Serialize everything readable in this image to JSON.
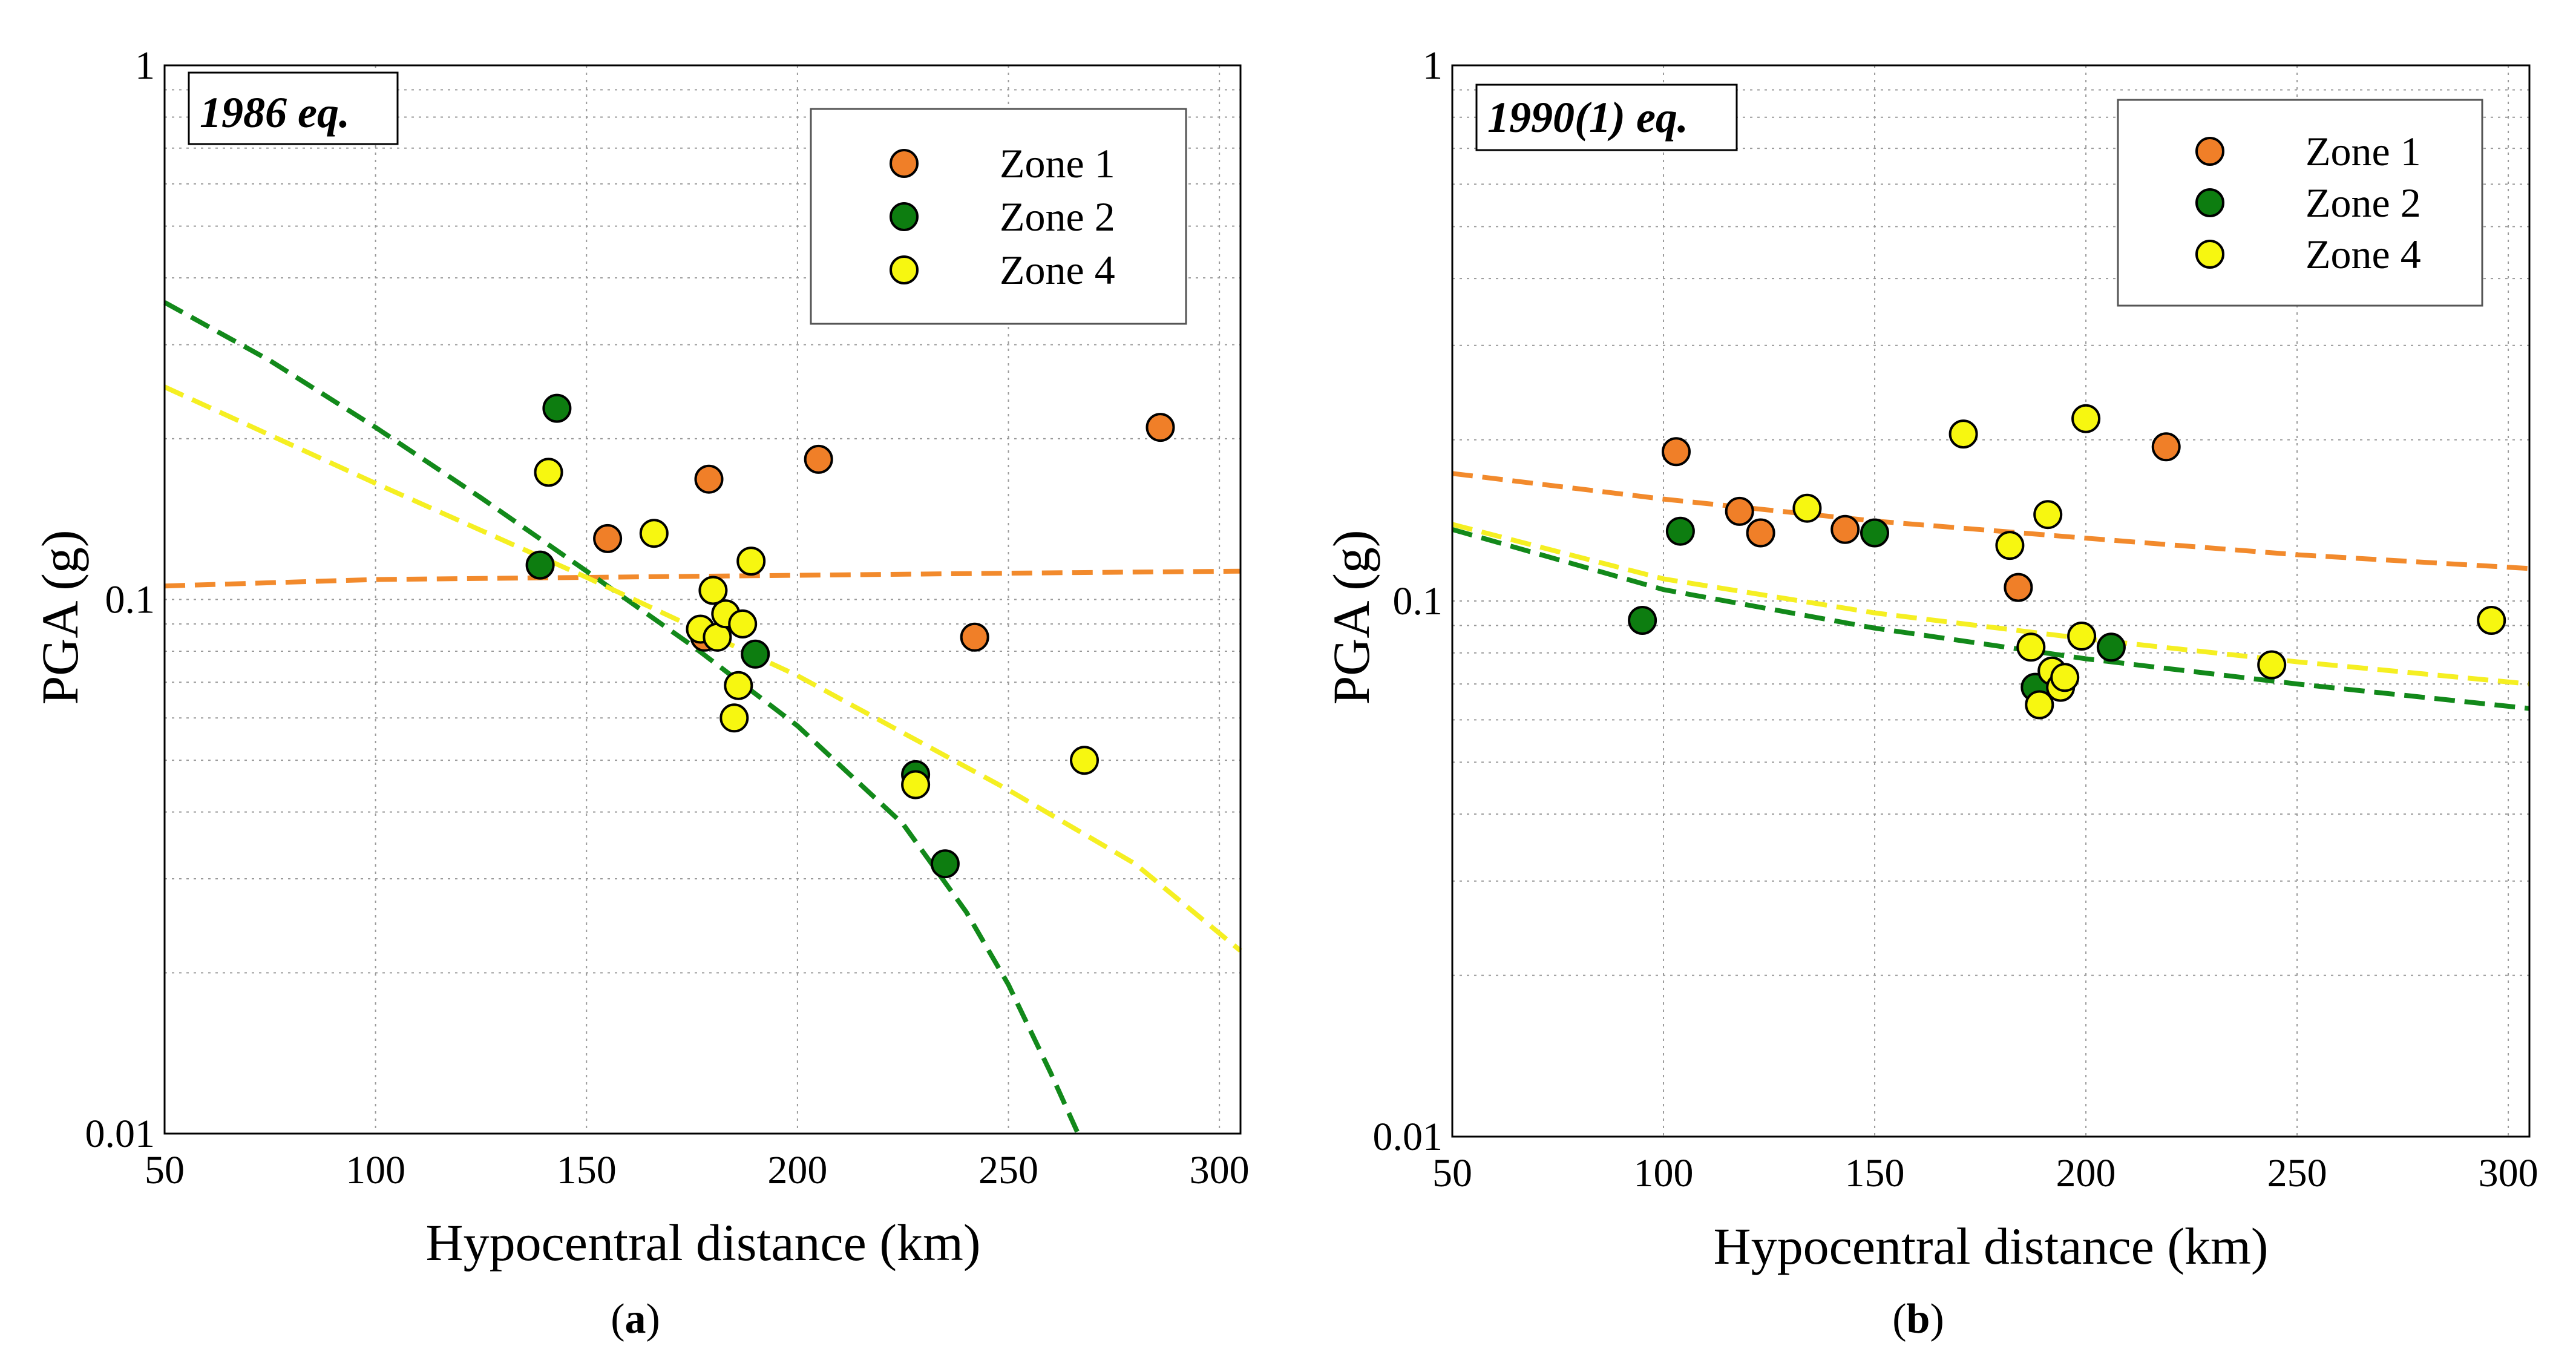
{
  "colors": {
    "zone1": "#f07f28",
    "zone2": "#0d7d10",
    "zone4": "#f7f710",
    "zone1_line": "#f28a2c",
    "zone2_line": "#12891a",
    "zone4_line": "#f5ef22"
  },
  "chart_data": [
    {
      "type": "scatter",
      "panel_label": "a",
      "title": "1986 eq.",
      "xlabel": "Hypocentral distance (km)",
      "ylabel": "PGA (g)",
      "xscale": "linear",
      "yscale": "log",
      "xlim": [
        50,
        305
      ],
      "ylim": [
        0.01,
        1
      ],
      "xticks": [
        50,
        100,
        150,
        200,
        250,
        300
      ],
      "xtick_labels": [
        "50",
        "100",
        "150",
        "200",
        "250",
        "300"
      ],
      "yticks": [
        0.01,
        0.1,
        1
      ],
      "ytick_labels": [
        "0.01",
        "0.1",
        "1"
      ],
      "grid": true,
      "legend_position": "top-right",
      "legend": [
        "Zone 1",
        "Zone 2",
        "Zone 4"
      ],
      "series": [
        {
          "name": "Zone 1",
          "color_key": "zone1",
          "x": [
            155,
            178,
            179,
            205,
            242,
            286
          ],
          "y": [
            0.13,
            0.085,
            0.168,
            0.183,
            0.085,
            0.21
          ]
        },
        {
          "name": "Zone 2",
          "color_key": "zone2",
          "x": [
            139,
            143,
            190,
            228,
            235
          ],
          "y": [
            0.116,
            0.228,
            0.079,
            0.047,
            0.032
          ]
        },
        {
          "name": "Zone 4",
          "color_key": "zone4",
          "x": [
            141,
            166,
            177,
            180,
            181,
            183,
            185,
            186,
            187,
            189,
            228,
            268
          ],
          "y": [
            0.173,
            0.133,
            0.088,
            0.104,
            0.085,
            0.094,
            0.06,
            0.069,
            0.09,
            0.118,
            0.045,
            0.05
          ]
        }
      ],
      "fits": [
        {
          "name": "Zone 1 fit",
          "color_key": "zone1_line",
          "x": [
            50,
            100,
            150,
            200,
            250,
            305
          ],
          "y": [
            0.106,
            0.109,
            0.11,
            0.111,
            0.112,
            0.113
          ]
        },
        {
          "name": "Zone 2 fit",
          "color_key": "zone2_line",
          "x": [
            50,
            75,
            100,
            125,
            150,
            175,
            200,
            225,
            240,
            250,
            260,
            267
          ],
          "y": [
            0.36,
            0.28,
            0.21,
            0.155,
            0.113,
            0.082,
            0.058,
            0.038,
            0.026,
            0.019,
            0.013,
            0.0098
          ]
        },
        {
          "name": "Zone 4 fit",
          "color_key": "zone4_line",
          "x": [
            50,
            100,
            150,
            200,
            250,
            280,
            305
          ],
          "y": [
            0.25,
            0.165,
            0.11,
            0.072,
            0.044,
            0.032,
            0.022
          ]
        }
      ]
    },
    {
      "type": "scatter",
      "panel_label": "b",
      "title": "1990(1) eq.",
      "xlabel": "Hypocentral distance (km)",
      "ylabel": "PGA (g)",
      "xscale": "linear",
      "yscale": "log",
      "xlim": [
        50,
        305
      ],
      "ylim": [
        0.01,
        1
      ],
      "xticks": [
        50,
        100,
        150,
        200,
        250,
        300
      ],
      "xtick_labels": [
        "50",
        "100",
        "150",
        "200",
        "250",
        "300"
      ],
      "yticks": [
        0.01,
        0.1,
        1
      ],
      "ytick_labels": [
        "0.01",
        "0.1",
        "1"
      ],
      "grid": true,
      "legend_position": "top-right",
      "legend": [
        "Zone 1",
        "Zone 2",
        "Zone 4"
      ],
      "series": [
        {
          "name": "Zone 1",
          "color_key": "zone1",
          "x": [
            103,
            118,
            123,
            143,
            184,
            219
          ],
          "y": [
            0.19,
            0.147,
            0.134,
            0.136,
            0.106,
            0.194
          ]
        },
        {
          "name": "Zone 2",
          "color_key": "zone2",
          "x": [
            95,
            104,
            150,
            188,
            206
          ],
          "y": [
            0.092,
            0.135,
            0.134,
            0.069,
            0.082
          ]
        },
        {
          "name": "Zone 4",
          "color_key": "zone4",
          "x": [
            134,
            171,
            182,
            187,
            189,
            191,
            192,
            194,
            195,
            199,
            200,
            244,
            296
          ],
          "y": [
            0.149,
            0.205,
            0.127,
            0.082,
            0.064,
            0.145,
            0.074,
            0.069,
            0.072,
            0.086,
            0.219,
            0.076,
            0.092
          ]
        }
      ],
      "fits": [
        {
          "name": "Zone 1 fit",
          "color_key": "zone1_line",
          "x": [
            50,
            100,
            150,
            200,
            250,
            305
          ],
          "y": [
            0.173,
            0.155,
            0.141,
            0.131,
            0.122,
            0.115
          ]
        },
        {
          "name": "Zone 2 fit",
          "color_key": "zone2_line",
          "x": [
            50,
            100,
            150,
            200,
            250,
            305
          ],
          "y": [
            0.136,
            0.105,
            0.089,
            0.078,
            0.07,
            0.063
          ]
        },
        {
          "name": "Zone 4 fit",
          "color_key": "zone4_line",
          "x": [
            50,
            100,
            150,
            200,
            250,
            305
          ],
          "y": [
            0.139,
            0.11,
            0.095,
            0.085,
            0.077,
            0.07
          ]
        }
      ]
    }
  ]
}
